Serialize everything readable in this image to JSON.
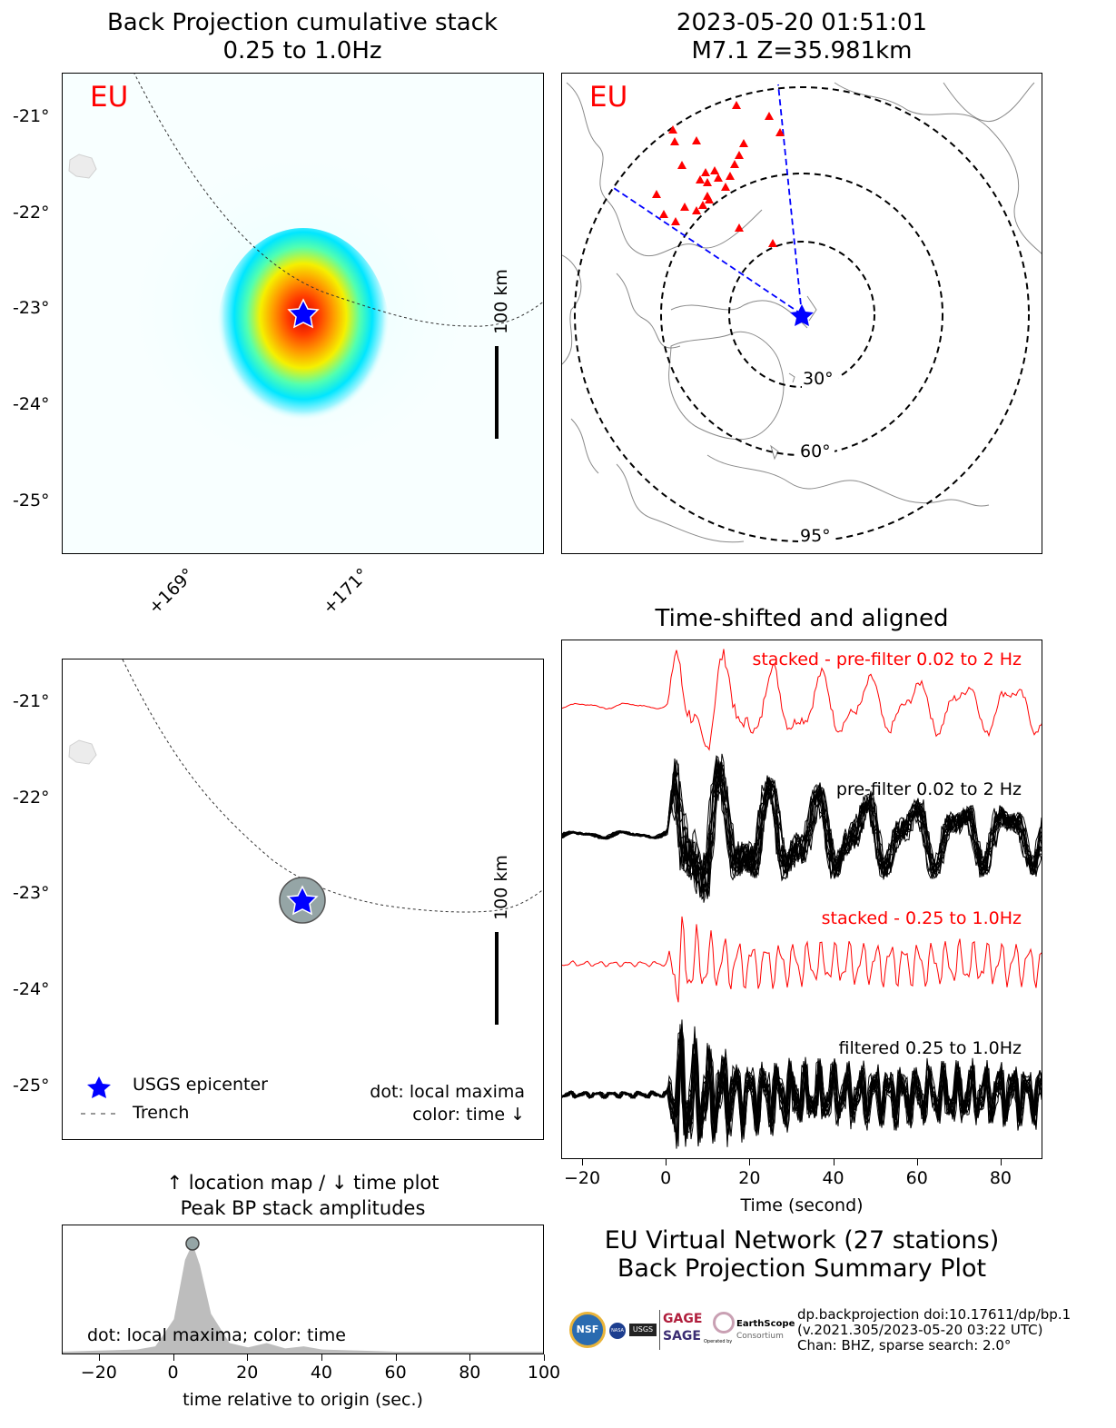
{
  "bp_panel": {
    "title_line1": "Back Projection cumulative stack",
    "title_line2": "0.25 to 1.0Hz",
    "network_label": "EU",
    "scale_label": "100 km",
    "lat_ticks": [
      "-21°",
      "-22°",
      "-23°",
      "-24°",
      "-25°"
    ],
    "lon_ticks": [
      "+169°",
      "+171°"
    ]
  },
  "event_panel": {
    "title_line1": "2023-05-20 01:51:01",
    "title_line2": "M7.1 Z=35.981km",
    "network_label": "EU",
    "distance_labels": [
      "30°",
      "60°",
      "95°"
    ]
  },
  "location_panel": {
    "scale_label": "100 km",
    "lat_ticks": [
      "-21°",
      "-22°",
      "-23°",
      "-24°",
      "-25°"
    ],
    "legend": {
      "epicenter": "USGS epicenter",
      "trench": "Trench"
    },
    "note_line1": "dot: local maxima",
    "note_line2": "color: time ↓"
  },
  "peak_panel": {
    "title_line1": "↑ location map / ↓ time plot",
    "title_line2": "Peak BP stack amplitudes",
    "note": "dot: local maxima; color: time",
    "xlabel": "time relative to origin (sec.)"
  },
  "trace_panel": {
    "title": "Time-shifted and aligned",
    "label_stacked_prefilter": "stacked - pre-filter 0.02 to 2 Hz",
    "label_prefilter": "pre-filter 0.02 to 2 Hz",
    "label_stacked_filtered": "stacked - 0.25 to 1.0Hz",
    "label_filtered": "filtered 0.25 to 1.0Hz",
    "xlabel": "Time (second)"
  },
  "summary": {
    "line1": "EU Virtual Network (27 stations)",
    "line2": "Back Projection Summary Plot"
  },
  "footer": {
    "line1": "dp.backprojection doi:10.17611/dp/bp.1",
    "line2": "(v.2021.305/2023-05-20 03:22 UTC)",
    "line3": "Chan: BHZ, sparse search: 2.0°",
    "logo_nsf": "NSF",
    "logo_nasa": "NASA",
    "logo_usgs": "USGS",
    "logo_gage": "GAGE",
    "logo_sage": "SAGE",
    "logo_es": "EarthScope",
    "logo_es_sub": "Consortium",
    "logo_es_op": "Operated by"
  },
  "colors": {
    "stacked_trace": "#ff0000",
    "epicenter": "#0000ff",
    "station": "#ff0000",
    "peak_fill": "#bdbdbd",
    "maxima_dot": "#95a5a6"
  },
  "chart_data": [
    {
      "type": "line",
      "name": "peak_bp_stack_amplitudes",
      "x": [
        -30,
        -20,
        -10,
        -5,
        0,
        3,
        5,
        7,
        10,
        15,
        20,
        25,
        30,
        35,
        40,
        50,
        60,
        70,
        80,
        90,
        100
      ],
      "y": [
        0.0,
        0.01,
        0.02,
        0.05,
        0.3,
        0.85,
        1.0,
        0.8,
        0.35,
        0.08,
        0.04,
        0.08,
        0.03,
        0.05,
        0.02,
        0.01,
        0.0,
        0.0,
        0.0,
        0.0,
        0.0
      ],
      "xlim": [
        -30,
        100
      ],
      "xticks": [
        -20,
        0,
        20,
        40,
        60,
        80,
        100
      ],
      "xlabel": "time relative to origin (sec.)",
      "maxima": [
        {
          "x": 5,
          "y": 1.0
        }
      ]
    },
    {
      "type": "line",
      "name": "time_shifted_traces",
      "xlim": [
        -25,
        90
      ],
      "xticks": [
        -20,
        0,
        20,
        40,
        60,
        80
      ],
      "xlabel": "Time (second)",
      "series_labels": [
        "stacked - pre-filter 0.02 to 2 Hz",
        "pre-filter 0.02 to 2 Hz",
        "stacked - 0.25 to 1.0Hz",
        "filtered 0.25 to 1.0Hz"
      ],
      "onset_time": 0
    },
    {
      "type": "heatmap",
      "name": "bp_cumulative_stack",
      "lat_range": [
        -25.5,
        -20.6
      ],
      "lon_range": [
        167.9,
        172.9
      ],
      "peak": {
        "lat": -23.1,
        "lon": 170.1
      },
      "epicenter": {
        "lat": -23.1,
        "lon": 170.1
      }
    }
  ]
}
